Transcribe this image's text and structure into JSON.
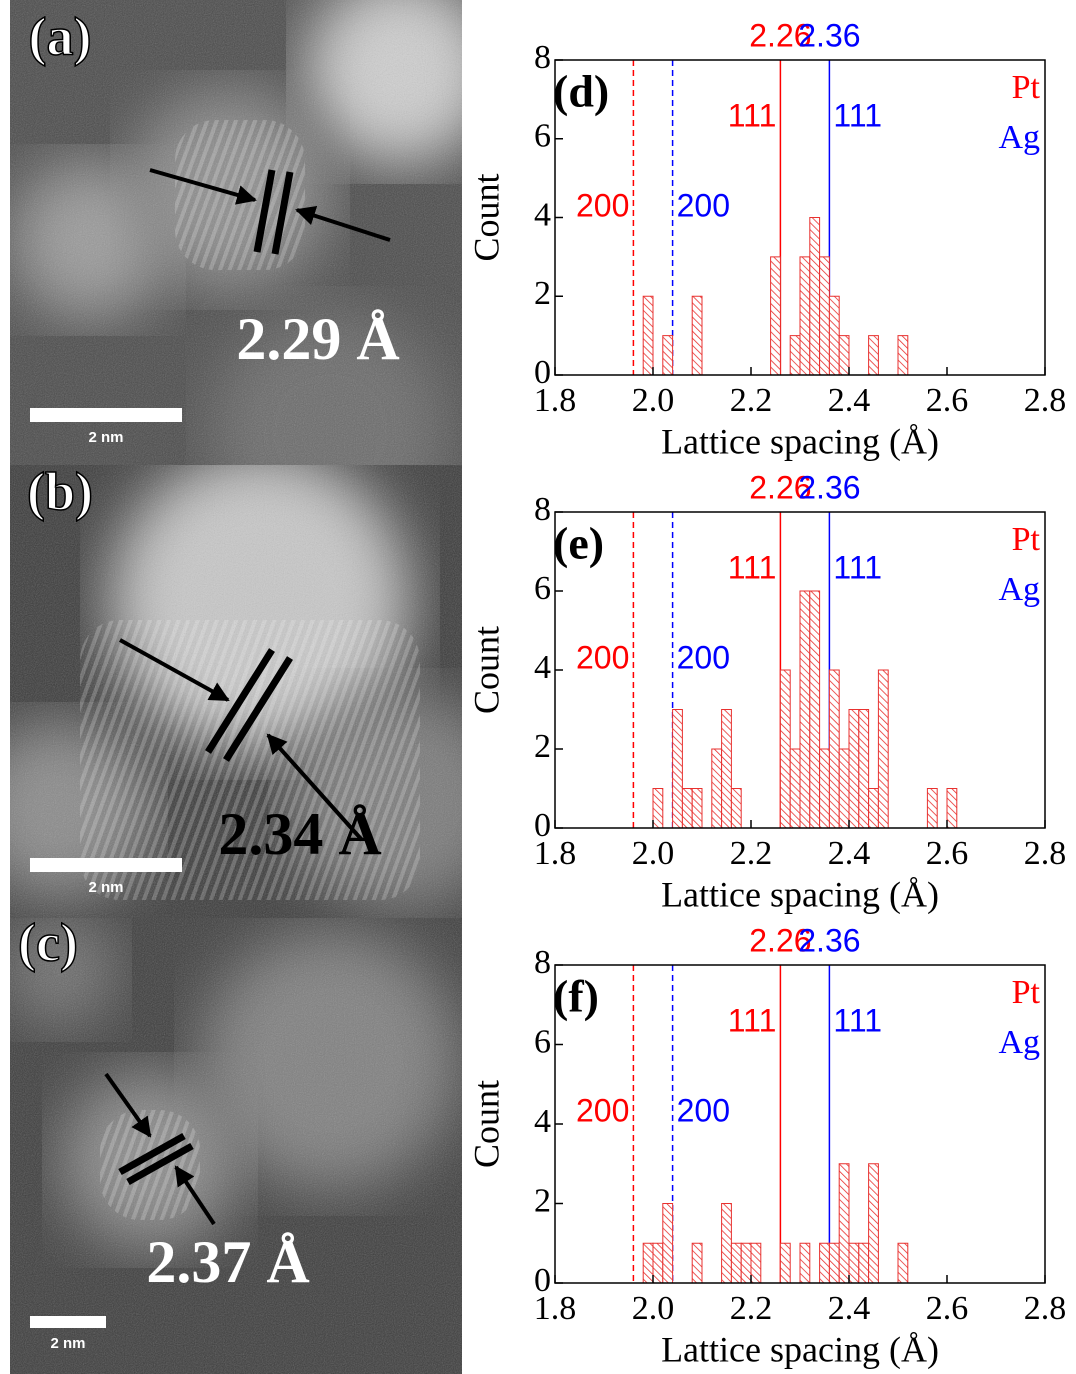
{
  "images": [
    {
      "label": "(a)",
      "measurement": "2.29 Å",
      "scale_bar": "2 nm"
    },
    {
      "label": "(b)",
      "measurement": "2.34 Å",
      "scale_bar": "2 nm"
    },
    {
      "label": "(c)",
      "measurement": "2.37 Å",
      "scale_bar": "2 nm"
    }
  ],
  "chart_data": [
    {
      "type": "histogram",
      "title": "(d)",
      "xlabel": "Lattice spacing (Å)",
      "ylabel": "Count",
      "bins": [
        1.8,
        1.82,
        1.84,
        1.86,
        1.88,
        1.9,
        1.92,
        1.94,
        1.96,
        1.98,
        2,
        2.02,
        2.04,
        2.06,
        2.08,
        2.1,
        2.12,
        2.14,
        2.16,
        2.18,
        2.2,
        2.22,
        2.24,
        2.26,
        2.28,
        2.3,
        2.32,
        2.34,
        2.36,
        2.38,
        2.4,
        2.42,
        2.44,
        2.46,
        2.48,
        2.5,
        2.52,
        2.54,
        2.56,
        2.58,
        2.6,
        2.62,
        2.64,
        2.66,
        2.68,
        2.7,
        2.72,
        2.74,
        2.76,
        2.78,
        2.8
      ],
      "counts": [
        0,
        0,
        0,
        0,
        0,
        0,
        0,
        0,
        0,
        2,
        0,
        1,
        0,
        0,
        2,
        0,
        0,
        0,
        0,
        0,
        0,
        0,
        3,
        0,
        1,
        3,
        4,
        3,
        2,
        1,
        0,
        0,
        1,
        0,
        0,
        1,
        0,
        0,
        0,
        0,
        0,
        0,
        0,
        0,
        0,
        0,
        0,
        0,
        0,
        0
      ],
      "color": "#e8312f",
      "hatch": true,
      "xlim": [
        1.8,
        2.8
      ],
      "ylim": [
        0,
        8
      ],
      "xticks": [
        1.8,
        {
          "value": 2,
          "label": "2.0"
        },
        2.2,
        2.4,
        2.6,
        2.8
      ],
      "yticks": [
        0,
        2,
        4,
        6,
        8
      ],
      "reference_lines": [
        {
          "value": 1.96,
          "label": "200",
          "color": "#ff0000",
          "style": "dashed",
          "show_value": false
        },
        {
          "value": 2.04,
          "label": "200",
          "color": "#0000ff",
          "style": "dashed",
          "show_value": false
        },
        {
          "value": 2.26,
          "label": "111",
          "color": "#ff0000",
          "style": "solid",
          "show_value": true
        },
        {
          "value": 2.36,
          "label": "111",
          "color": "#0000ff",
          "style": "solid",
          "show_value": true
        }
      ],
      "legend": [
        {
          "name": "Pt",
          "color": "#ff0000"
        },
        {
          "name": "Ag",
          "color": "#0000ff"
        }
      ]
    },
    {
      "type": "histogram",
      "title": "(e)",
      "xlabel": "Lattice spacing (Å)",
      "ylabel": "Count",
      "bins": [
        1.8,
        1.82,
        1.84,
        1.86,
        1.88,
        1.9,
        1.92,
        1.94,
        1.96,
        1.98,
        2,
        2.02,
        2.04,
        2.06,
        2.08,
        2.1,
        2.12,
        2.14,
        2.16,
        2.18,
        2.2,
        2.22,
        2.24,
        2.26,
        2.28,
        2.3,
        2.32,
        2.34,
        2.36,
        2.38,
        2.4,
        2.42,
        2.44,
        2.46,
        2.48,
        2.5,
        2.52,
        2.54,
        2.56,
        2.58,
        2.6,
        2.62,
        2.64,
        2.66,
        2.68,
        2.7,
        2.72,
        2.74,
        2.76,
        2.78,
        2.8
      ],
      "counts": [
        0,
        0,
        0,
        0,
        0,
        0,
        0,
        0,
        0,
        0,
        1,
        0,
        3,
        1,
        1,
        0,
        2,
        3,
        1,
        0,
        0,
        0,
        0,
        4,
        2,
        6,
        6,
        2,
        4,
        2,
        3,
        3,
        1,
        4,
        0,
        0,
        0,
        0,
        1,
        0,
        1,
        0,
        0,
        0,
        0,
        0,
        0,
        0,
        0,
        0
      ],
      "color": "#e8312f",
      "hatch": true,
      "xlim": [
        1.8,
        2.8
      ],
      "ylim": [
        0,
        8
      ],
      "xticks": [
        1.8,
        {
          "value": 2,
          "label": "2.0"
        },
        2.2,
        2.4,
        2.6,
        2.8
      ],
      "yticks": [
        0,
        2,
        4,
        6,
        8
      ],
      "reference_lines": [
        {
          "value": 1.96,
          "label": "200",
          "color": "#ff0000",
          "style": "dashed",
          "show_value": false
        },
        {
          "value": 2.04,
          "label": "200",
          "color": "#0000ff",
          "style": "dashed",
          "show_value": false
        },
        {
          "value": 2.26,
          "label": "111",
          "color": "#ff0000",
          "style": "solid",
          "show_value": true
        },
        {
          "value": 2.36,
          "label": "111",
          "color": "#0000ff",
          "style": "solid",
          "show_value": true
        }
      ],
      "legend": [
        {
          "name": "Pt",
          "color": "#ff0000"
        },
        {
          "name": "Ag",
          "color": "#0000ff"
        }
      ]
    },
    {
      "type": "histogram",
      "title": "(f)",
      "xlabel": "Lattice spacing (Å)",
      "ylabel": "Count",
      "bins": [
        1.8,
        1.82,
        1.84,
        1.86,
        1.88,
        1.9,
        1.92,
        1.94,
        1.96,
        1.98,
        2,
        2.02,
        2.04,
        2.06,
        2.08,
        2.1,
        2.12,
        2.14,
        2.16,
        2.18,
        2.2,
        2.22,
        2.24,
        2.26,
        2.28,
        2.3,
        2.32,
        2.34,
        2.36,
        2.38,
        2.4,
        2.42,
        2.44,
        2.46,
        2.48,
        2.5,
        2.52,
        2.54,
        2.56,
        2.58,
        2.6,
        2.62,
        2.64,
        2.66,
        2.68,
        2.7,
        2.72,
        2.74,
        2.76,
        2.78,
        2.8
      ],
      "counts": [
        0,
        0,
        0,
        0,
        0,
        0,
        0,
        0,
        0,
        1,
        1,
        2,
        0,
        0,
        1,
        0,
        0,
        2,
        1,
        1,
        1,
        0,
        0,
        1,
        0,
        1,
        0,
        1,
        1,
        3,
        1,
        1,
        3,
        0,
        0,
        1,
        0,
        0,
        0,
        0,
        0,
        0,
        0,
        0,
        0,
        0,
        0,
        0,
        0,
        0
      ],
      "color": "#e8312f",
      "hatch": true,
      "xlim": [
        1.8,
        2.8
      ],
      "ylim": [
        0,
        8
      ],
      "xticks": [
        1.8,
        {
          "value": 2,
          "label": "2.0"
        },
        2.2,
        2.4,
        2.6,
        2.8
      ],
      "yticks": [
        0,
        2,
        4,
        6,
        8
      ],
      "reference_lines": [
        {
          "value": 1.96,
          "label": "200",
          "color": "#ff0000",
          "style": "dashed",
          "show_value": false
        },
        {
          "value": 2.04,
          "label": "200",
          "color": "#0000ff",
          "style": "dashed",
          "show_value": false
        },
        {
          "value": 2.26,
          "label": "111",
          "color": "#ff0000",
          "style": "solid",
          "show_value": true
        },
        {
          "value": 2.36,
          "label": "111",
          "color": "#0000ff",
          "style": "solid",
          "show_value": true
        }
      ],
      "legend": [
        {
          "name": "Pt",
          "color": "#ff0000"
        },
        {
          "name": "Ag",
          "color": "#0000ff"
        }
      ]
    }
  ]
}
